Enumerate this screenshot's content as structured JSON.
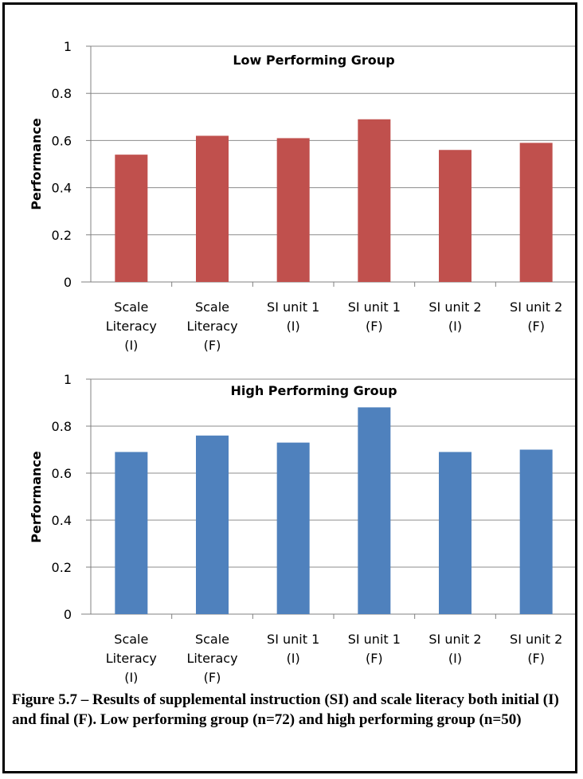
{
  "figure": {
    "caption": "Figure 5.7 – Results of supplemental instruction (SI) and scale literacy both initial (I) and final (F). Low performing group (n=72) and high performing group (n=50)"
  },
  "chart_data": [
    {
      "type": "bar",
      "title": "Low Performing Group",
      "xlabel": "",
      "ylabel": "Performance",
      "categories": [
        [
          "Scale",
          "Literacy",
          "(I)"
        ],
        [
          "Scale",
          "Literacy",
          "(F)"
        ],
        [
          "SI unit 1",
          "(I)"
        ],
        [
          "SI unit 1",
          "(F)"
        ],
        [
          "SI unit 2",
          "(I)"
        ],
        [
          "SI unit 2",
          "(F)"
        ]
      ],
      "values": [
        0.54,
        0.62,
        0.61,
        0.69,
        0.56,
        0.59
      ],
      "ylim": [
        0,
        1
      ],
      "yticks": [
        0,
        0.2,
        0.4,
        0.6,
        0.8,
        1
      ],
      "ytick_labels": [
        "0",
        "0.2",
        "0.4",
        "0.6",
        "0.8",
        "1"
      ],
      "grid": true,
      "color": "#c0504d"
    },
    {
      "type": "bar",
      "title": "High Performing Group",
      "xlabel": "",
      "ylabel": "Performance",
      "categories": [
        [
          "Scale",
          "Literacy",
          "(I)"
        ],
        [
          "Scale",
          "Literacy",
          "(F)"
        ],
        [
          "SI unit 1",
          "(I)"
        ],
        [
          "SI unit 1",
          "(F)"
        ],
        [
          "SI unit 2",
          "(I)"
        ],
        [
          "SI unit 2",
          "(F)"
        ]
      ],
      "values": [
        0.69,
        0.76,
        0.73,
        0.88,
        0.69,
        0.7
      ],
      "ylim": [
        0,
        1
      ],
      "yticks": [
        0,
        0.2,
        0.4,
        0.6,
        0.8,
        1
      ],
      "ytick_labels": [
        "0",
        "0.2",
        "0.4",
        "0.6",
        "0.8",
        "1"
      ],
      "grid": true,
      "color": "#4f81bd"
    }
  ]
}
